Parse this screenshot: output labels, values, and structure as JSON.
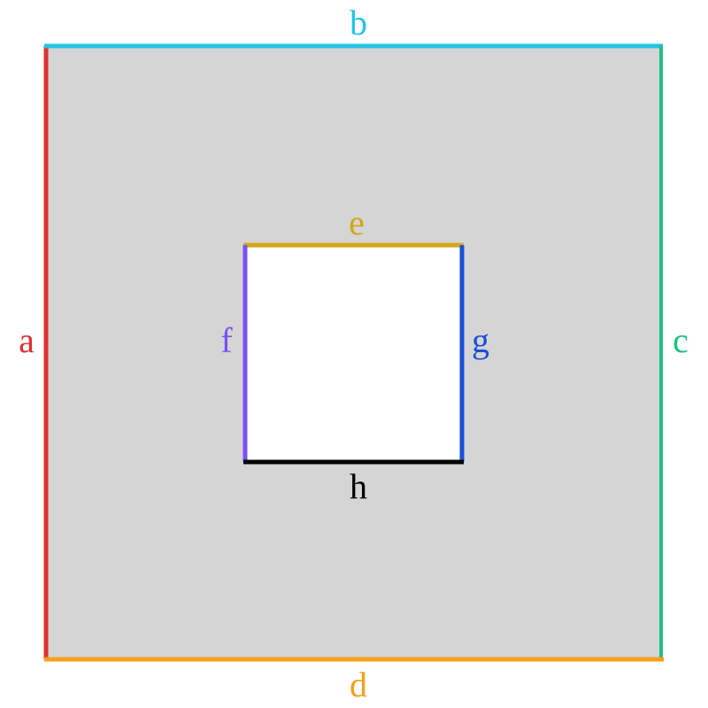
{
  "outer_square": {
    "fill_color": "#d5d5d5",
    "edges": {
      "left": {
        "label": "a",
        "color": "#e03131"
      },
      "top": {
        "label": "b",
        "color": "#22c3e6"
      },
      "right": {
        "label": "c",
        "color": "#20c085"
      },
      "bottom": {
        "label": "d",
        "color": "#f59f1a"
      }
    }
  },
  "inner_square": {
    "fill_color": "#ffffff",
    "edges": {
      "top": {
        "label": "e",
        "color": "#d4a712"
      },
      "left": {
        "label": "f",
        "color": "#7950f2"
      },
      "right": {
        "label": "g",
        "color": "#1c4fd8"
      },
      "bottom": {
        "label": "h",
        "color": "#000000"
      }
    }
  }
}
